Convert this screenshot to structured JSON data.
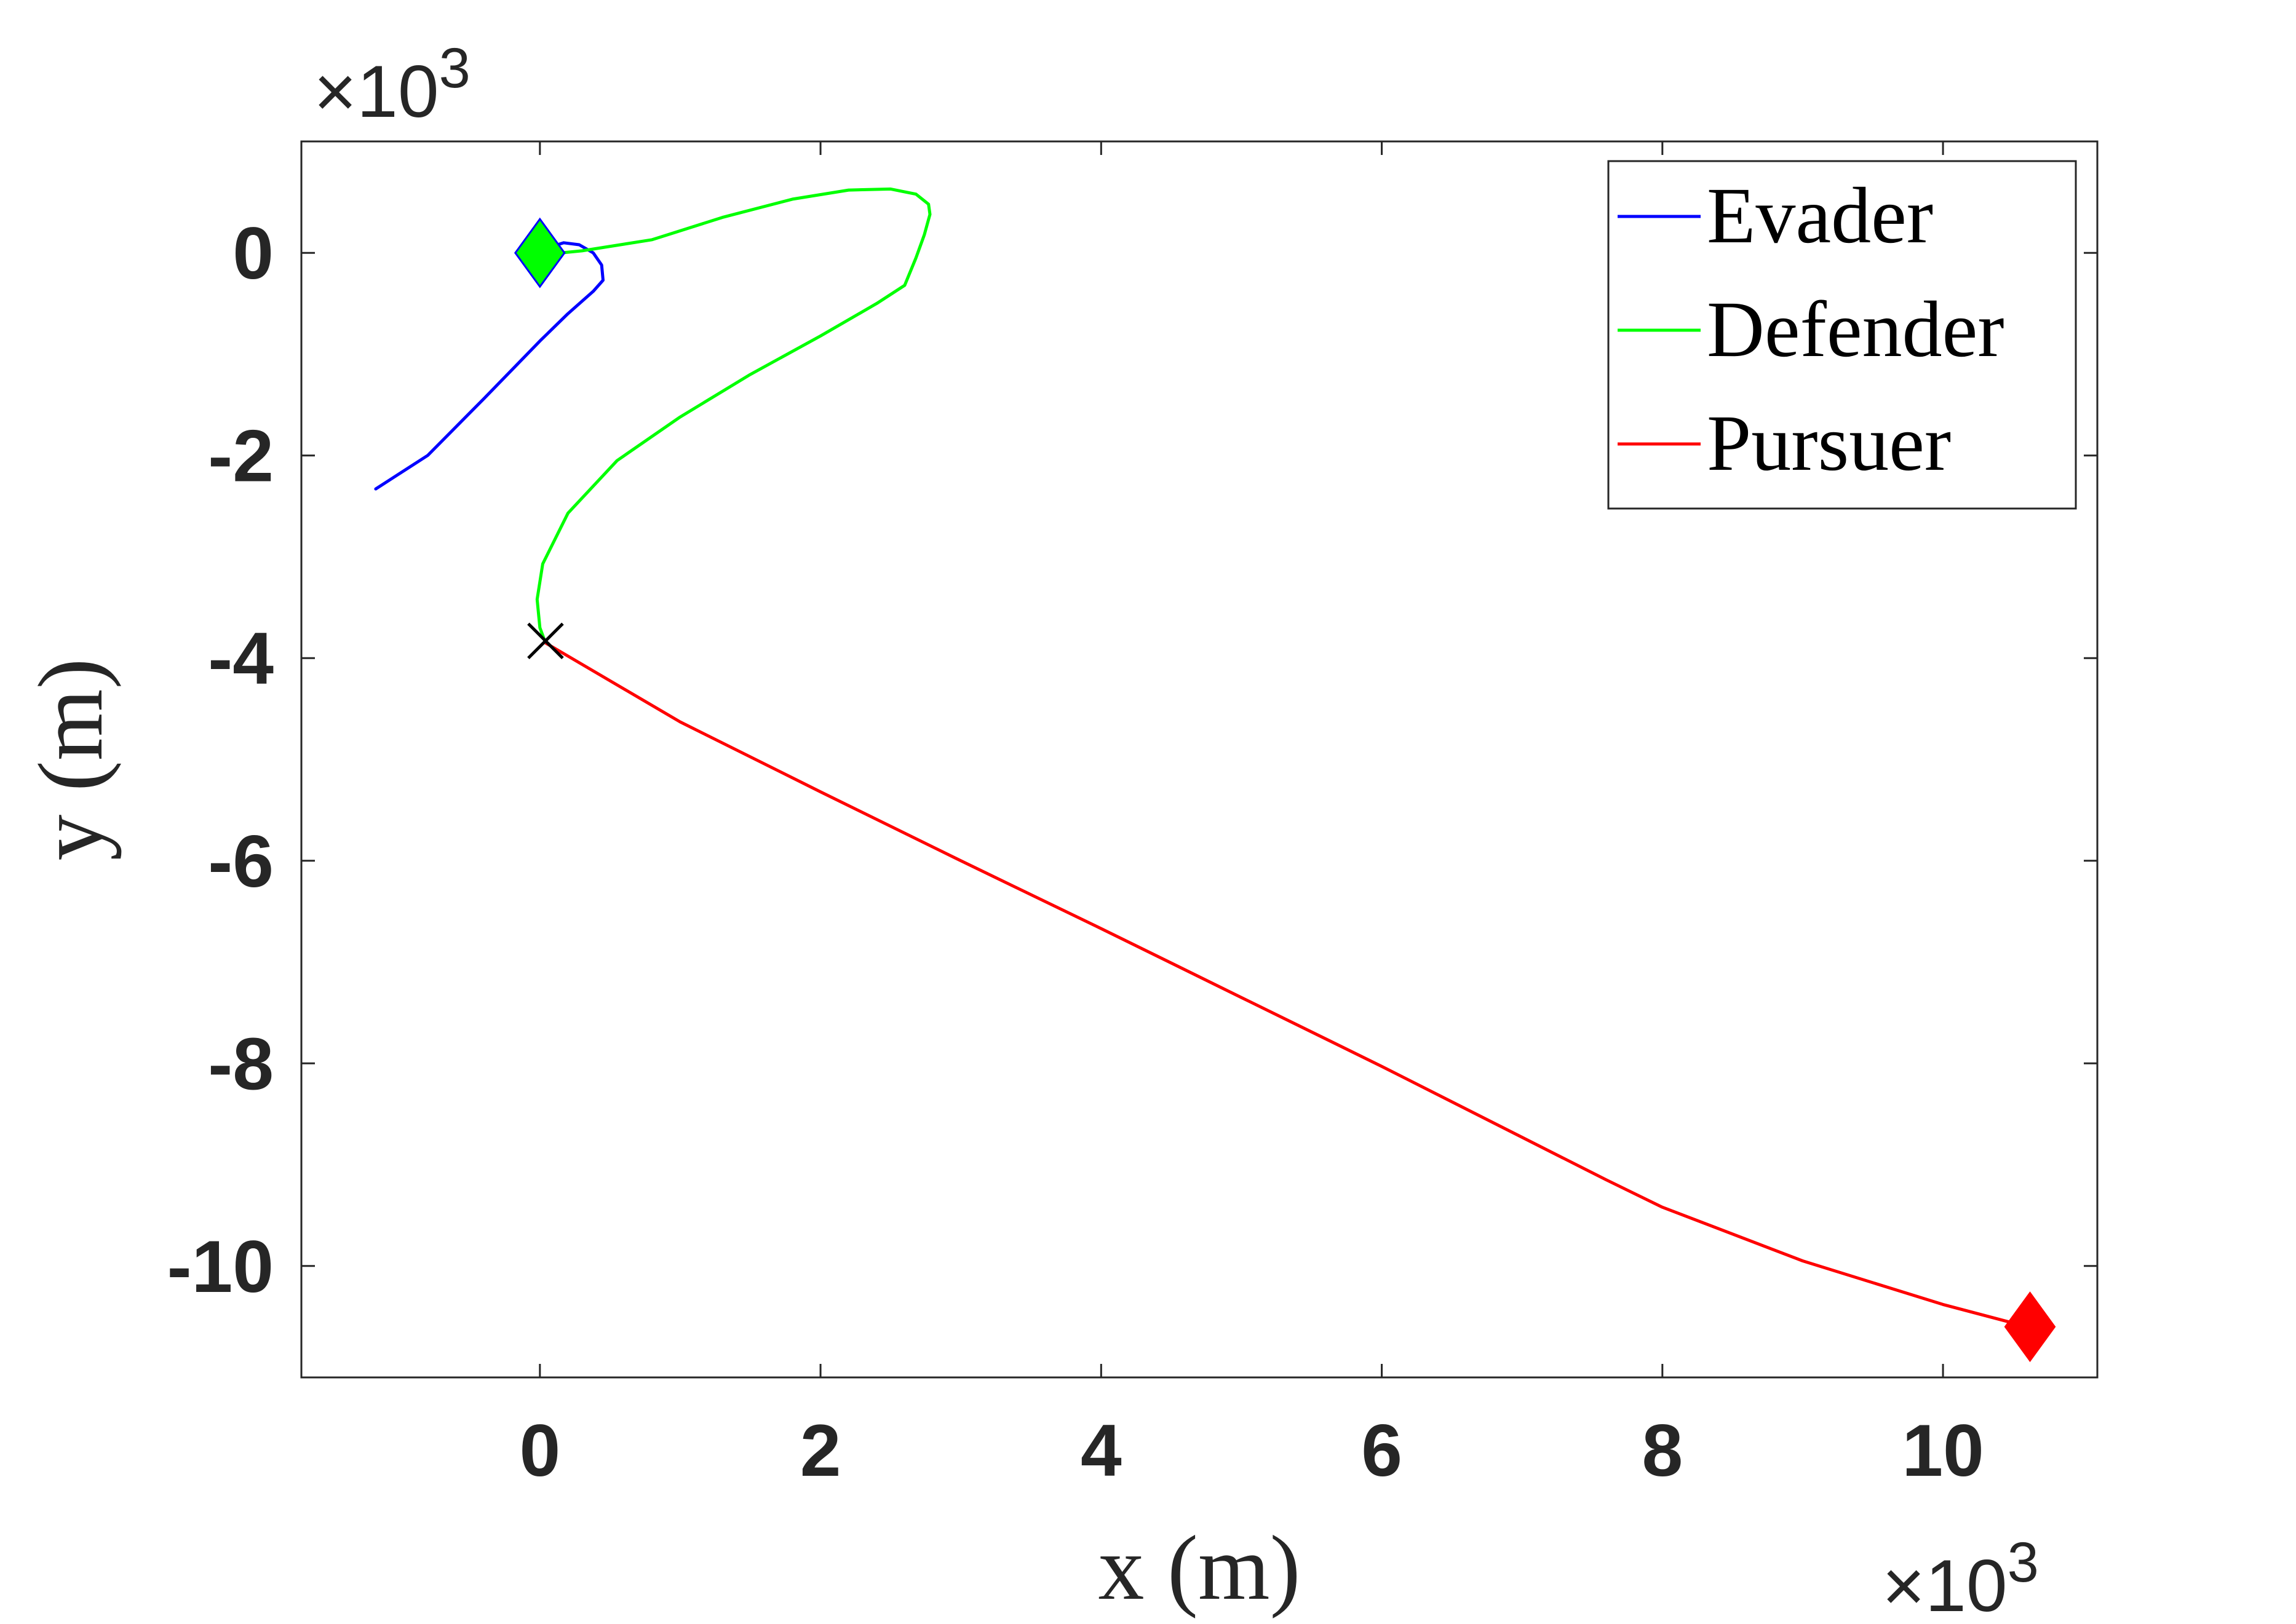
{
  "chart_data": {
    "type": "line",
    "xlabel": "x (m)",
    "ylabel": "y (m)",
    "x_multiplier": "×10",
    "y_multiplier": "×10",
    "multiplier_exponent": "3",
    "xlim": [
      -1.7,
      11.1
    ],
    "ylim": [
      -11.1,
      1.1
    ],
    "x_ticks": [
      0,
      2,
      4,
      6,
      8,
      10
    ],
    "x_tick_labels": [
      "0",
      "2",
      "4",
      "6",
      "8",
      "10"
    ],
    "y_ticks": [
      0,
      -2,
      -4,
      -6,
      -8,
      -10
    ],
    "y_tick_labels": [
      "0",
      "-2",
      "-4",
      "-6",
      "-8",
      "-10"
    ],
    "grid": false,
    "legend_position": "top-right",
    "series": [
      {
        "name": "Evader",
        "color": "#0000ff",
        "x": [
          -1.17,
          -0.8,
          -0.4,
          0.0,
          0.2,
          0.38,
          0.45,
          0.44,
          0.38,
          0.28,
          0.17,
          0.08,
          0.03,
          0.0
        ],
        "y": [
          -2.33,
          -2.0,
          -1.44,
          -0.87,
          -0.6,
          -0.38,
          -0.27,
          -0.12,
          0.0,
          0.08,
          0.1,
          0.06,
          0.02,
          0.0
        ]
      },
      {
        "name": "Defender",
        "color": "#00ff00",
        "x": [
          0.0,
          0.08,
          0.3,
          0.8,
          1.3,
          1.8,
          2.2,
          2.5,
          2.68,
          2.77,
          2.78,
          2.74,
          2.68,
          2.6,
          2.4,
          2.0,
          1.5,
          1.0,
          0.55,
          0.2,
          0.02,
          -0.02,
          0.0,
          0.04
        ],
        "y": [
          0.0,
          -0.01,
          0.02,
          0.13,
          0.35,
          0.53,
          0.62,
          0.63,
          0.58,
          0.48,
          0.38,
          0.18,
          -0.05,
          -0.32,
          -0.5,
          -0.82,
          -1.2,
          -1.62,
          -2.05,
          -2.57,
          -3.07,
          -3.42,
          -3.7,
          -3.85
        ]
      },
      {
        "name": "Pursuer",
        "color": "#ff0000",
        "x": [
          0.04,
          1.0,
          2.0,
          3.0,
          4.0,
          5.0,
          6.0,
          7.0,
          7.6,
          8.0,
          9.0,
          10.0,
          10.6
        ],
        "y": [
          -3.85,
          -4.63,
          -5.32,
          -6.0,
          -6.67,
          -7.35,
          -8.03,
          -8.73,
          -9.15,
          -9.42,
          -9.95,
          -10.38,
          -10.6
        ]
      }
    ],
    "markers": [
      {
        "name": "evader-defender-start",
        "shape": "diamond",
        "fill": "#00ff00",
        "stroke": "#0000ff",
        "x": 0.0,
        "y": 0.0
      },
      {
        "name": "pursuer-start",
        "shape": "diamond",
        "fill": "#ff0000",
        "stroke": "#ff0000",
        "x": 10.62,
        "y": -10.6
      },
      {
        "name": "intercept-point",
        "shape": "cross",
        "fill": "none",
        "stroke": "#000000",
        "x": 0.04,
        "y": -3.83
      }
    ]
  }
}
